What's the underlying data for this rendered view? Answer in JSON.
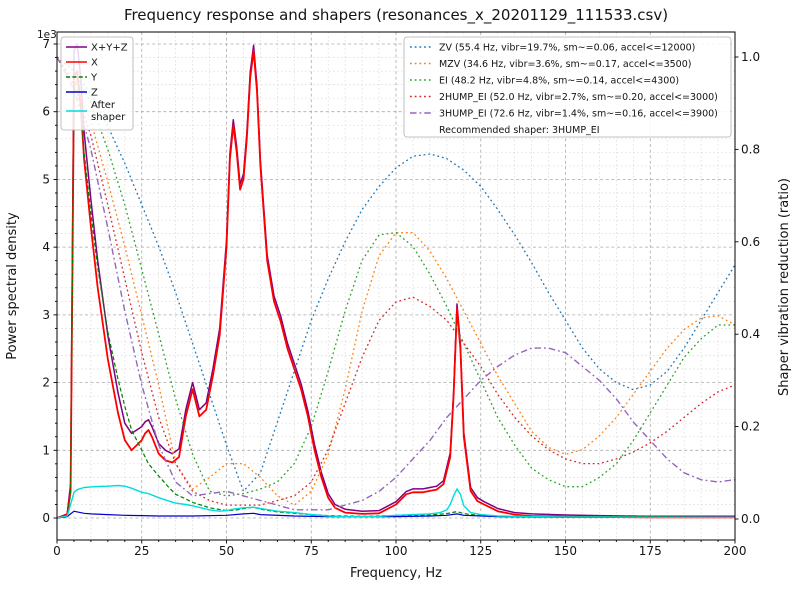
{
  "chart_data": {
    "type": "line",
    "title": "Frequency response and shapers (resonances_x_20201129_111533.csv)",
    "xlabel": "Frequency, Hz",
    "ylabel_left": "Power spectral density",
    "ylabel_right": "Shaper vibration reduction (ratio)",
    "y_left_multiplier": "1e3",
    "xlim": [
      0,
      200
    ],
    "ylim_left": [
      0,
      7000
    ],
    "ylim_right": [
      0,
      1.0
    ],
    "xticks": [
      0,
      25,
      50,
      75,
      100,
      125,
      150,
      175,
      200
    ],
    "yticks_left": [
      0,
      1,
      2,
      3,
      4,
      5,
      6,
      7
    ],
    "yticks_right": [
      "0.0",
      "0.2",
      "0.4",
      "0.6",
      "0.8",
      "1.0"
    ],
    "grid": true,
    "legend_position_psd": "upper left",
    "legend_position_shapers": "upper right",
    "recommended_label": "Recommended shaper: 3HUMP_EI",
    "colors": {
      "grid_major": "#aaaaaa",
      "grid_minor": "#d9d9d9",
      "spine": "#000000",
      "legend_border": "#b0b0b0"
    },
    "psd_series": [
      {
        "id": "sum",
        "name": "X+Y+Z",
        "color": "#800080",
        "style": "solid",
        "width": 1.5,
        "axis": "left",
        "x": [
          0,
          3,
          4,
          5,
          6,
          7,
          8,
          10,
          12,
          15,
          18,
          20,
          22,
          25,
          26,
          27,
          28,
          30,
          32,
          34,
          36,
          38,
          40,
          42,
          44,
          46,
          48,
          50,
          51,
          52,
          53,
          54,
          55,
          56,
          57,
          58,
          59,
          60,
          62,
          64,
          66,
          68,
          70,
          72,
          74,
          76,
          78,
          80,
          82,
          85,
          90,
          95,
          100,
          103,
          105,
          108,
          110,
          112,
          114,
          116,
          117,
          118,
          119,
          120,
          122,
          124,
          126,
          128,
          130,
          135,
          140,
          150,
          160,
          175,
          200
        ],
        "y": [
          0,
          60,
          500,
          6900,
          7000,
          6500,
          5700,
          4700,
          3800,
          2700,
          1850,
          1400,
          1250,
          1350,
          1420,
          1450,
          1350,
          1100,
          1000,
          950,
          1020,
          1600,
          2000,
          1600,
          1700,
          2200,
          2800,
          4100,
          5380,
          5880,
          5480,
          4930,
          5080,
          5680,
          6580,
          6980,
          6380,
          5280,
          3880,
          3280,
          2980,
          2580,
          2280,
          1980,
          1580,
          1080,
          670,
          360,
          200,
          130,
          100,
          110,
          240,
          390,
          430,
          430,
          450,
          470,
          550,
          960,
          1860,
          3160,
          2560,
          1260,
          450,
          300,
          240,
          190,
          140,
          80,
          60,
          45,
          35,
          25,
          25
        ]
      },
      {
        "id": "x",
        "name": "X",
        "color": "#ff0000",
        "style": "solid",
        "width": 1.8,
        "axis": "left",
        "x": [
          0,
          3,
          4,
          5,
          6,
          7,
          8,
          10,
          12,
          15,
          18,
          20,
          22,
          25,
          26,
          27,
          28,
          30,
          32,
          34,
          36,
          38,
          40,
          42,
          44,
          46,
          48,
          50,
          51,
          52,
          53,
          54,
          55,
          56,
          57,
          58,
          59,
          60,
          62,
          64,
          66,
          68,
          70,
          72,
          74,
          76,
          78,
          80,
          82,
          85,
          90,
          95,
          100,
          103,
          105,
          108,
          110,
          112,
          114,
          116,
          117,
          118,
          119,
          120,
          122,
          124,
          126,
          128,
          130,
          135,
          140,
          150,
          160,
          175,
          200
        ],
        "y": [
          0,
          50,
          400,
          6500,
          6600,
          6100,
          5300,
          4300,
          3400,
          2350,
          1550,
          1150,
          1000,
          1150,
          1250,
          1300,
          1200,
          950,
          850,
          820,
          900,
          1500,
          1900,
          1500,
          1600,
          2100,
          2700,
          4000,
          5300,
          5800,
          5400,
          4850,
          5000,
          5600,
          6500,
          6900,
          6300,
          5200,
          3800,
          3200,
          2900,
          2500,
          2200,
          1900,
          1500,
          1000,
          600,
          300,
          150,
          80,
          60,
          70,
          200,
          350,
          380,
          380,
          400,
          420,
          500,
          900,
          1800,
          3100,
          2500,
          1200,
          400,
          250,
          200,
          150,
          100,
          50,
          30,
          20,
          15,
          10,
          10
        ]
      },
      {
        "id": "y",
        "name": "Y",
        "color": "#008000",
        "style": "dashed",
        "width": 1.2,
        "axis": "left",
        "x": [
          0,
          3,
          4,
          5,
          6,
          7,
          8,
          10,
          12,
          15,
          18,
          20,
          22,
          25,
          27,
          30,
          33,
          35,
          38,
          40,
          45,
          50,
          53,
          55,
          58,
          60,
          65,
          70,
          75,
          80,
          90,
          100,
          110,
          115,
          118,
          120,
          125,
          130,
          140,
          150,
          160,
          170,
          180,
          200
        ],
        "y": [
          0,
          40,
          350,
          6300,
          6500,
          6000,
          5400,
          4500,
          3700,
          2750,
          2050,
          1650,
          1300,
          1000,
          800,
          620,
          450,
          350,
          280,
          230,
          150,
          110,
          120,
          140,
          160,
          130,
          90,
          70,
          50,
          35,
          25,
          35,
          45,
          65,
          95,
          65,
          35,
          25,
          15,
          15,
          25,
          30,
          20,
          10
        ]
      },
      {
        "id": "z",
        "name": "Z",
        "color": "#0000cc",
        "style": "solid",
        "width": 1.2,
        "axis": "left",
        "x": [
          0,
          3,
          4,
          5,
          6,
          8,
          10,
          15,
          20,
          25,
          30,
          40,
          50,
          55,
          58,
          60,
          70,
          80,
          100,
          110,
          115,
          118,
          120,
          130,
          150,
          200
        ],
        "y": [
          0,
          20,
          60,
          100,
          90,
          70,
          60,
          50,
          40,
          35,
          30,
          30,
          40,
          60,
          70,
          50,
          30,
          20,
          20,
          30,
          40,
          60,
          40,
          20,
          10,
          10
        ]
      },
      {
        "id": "after",
        "name": "After shaper",
        "legend_lines": [
          "After",
          "shaper"
        ],
        "color": "#00dddd",
        "style": "solid",
        "width": 1.4,
        "axis": "left",
        "x": [
          0,
          3,
          4,
          5,
          6,
          8,
          10,
          12,
          15,
          18,
          20,
          22,
          25,
          27,
          30,
          33,
          35,
          38,
          40,
          45,
          48,
          50,
          52,
          55,
          58,
          60,
          65,
          70,
          75,
          80,
          85,
          90,
          95,
          100,
          105,
          110,
          113,
          115,
          116,
          117,
          118,
          119,
          120,
          122,
          125,
          130,
          140,
          150,
          160,
          180,
          200
        ],
        "y": [
          0,
          30,
          200,
          380,
          420,
          450,
          460,
          465,
          470,
          480,
          470,
          440,
          380,
          360,
          300,
          250,
          220,
          200,
          180,
          120,
          100,
          110,
          130,
          150,
          160,
          140,
          100,
          80,
          50,
          30,
          20,
          20,
          25,
          40,
          50,
          60,
          80,
          120,
          200,
          330,
          430,
          350,
          180,
          80,
          50,
          30,
          20,
          15,
          15,
          10,
          10
        ]
      }
    ],
    "shaper_x": [
      0,
      5,
      10,
      15,
      20,
      25,
      30,
      35,
      40,
      45,
      50,
      55,
      60,
      65,
      70,
      75,
      80,
      85,
      90,
      95,
      100,
      105,
      110,
      115,
      120,
      125,
      130,
      135,
      140,
      145,
      150,
      155,
      160,
      165,
      170,
      175,
      180,
      185,
      190,
      195,
      200
    ],
    "shaper_series": [
      {
        "id": "zv",
        "name": "ZV",
        "label": "ZV (55.4 Hz, vibr=19.7%, sm~=0.06, accel<=12000)",
        "color": "#1f77b4",
        "style": "dotted",
        "width": 1.3,
        "axis": "right",
        "y": [
          1.0,
          0.97,
          0.92,
          0.85,
          0.77,
          0.68,
          0.59,
          0.49,
          0.38,
          0.27,
          0.16,
          0.06,
          0.1,
          0.21,
          0.32,
          0.43,
          0.52,
          0.6,
          0.67,
          0.72,
          0.76,
          0.785,
          0.79,
          0.78,
          0.755,
          0.72,
          0.67,
          0.615,
          0.555,
          0.49,
          0.43,
          0.37,
          0.325,
          0.295,
          0.28,
          0.29,
          0.32,
          0.37,
          0.43,
          0.49,
          0.55
        ]
      },
      {
        "id": "mzv",
        "name": "MZV",
        "label": "MZV (34.6 Hz, vibr=3.6%, sm~=0.17, accel<=3500)",
        "color": "#ff7f0e",
        "style": "dotted",
        "width": 1.3,
        "axis": "right",
        "y": [
          1.0,
          0.95,
          0.86,
          0.73,
          0.59,
          0.44,
          0.29,
          0.12,
          0.065,
          0.09,
          0.12,
          0.12,
          0.09,
          0.05,
          0.03,
          0.06,
          0.14,
          0.28,
          0.45,
          0.57,
          0.62,
          0.62,
          0.58,
          0.52,
          0.45,
          0.38,
          0.31,
          0.25,
          0.19,
          0.155,
          0.14,
          0.15,
          0.18,
          0.22,
          0.27,
          0.32,
          0.37,
          0.41,
          0.435,
          0.44,
          0.42
        ]
      },
      {
        "id": "ei",
        "name": "EI",
        "label": "EI (48.2 Hz, vibr=4.8%, sm~=0.14, accel<=4300)",
        "color": "#2ca02c",
        "style": "dotted",
        "width": 1.3,
        "axis": "right",
        "y": [
          1.0,
          0.97,
          0.9,
          0.8,
          0.68,
          0.54,
          0.4,
          0.26,
          0.14,
          0.06,
          0.05,
          0.055,
          0.065,
          0.08,
          0.12,
          0.2,
          0.32,
          0.45,
          0.56,
          0.615,
          0.62,
          0.59,
          0.53,
          0.46,
          0.38,
          0.3,
          0.22,
          0.16,
          0.11,
          0.085,
          0.07,
          0.07,
          0.09,
          0.12,
          0.17,
          0.23,
          0.29,
          0.35,
          0.39,
          0.42,
          0.42
        ]
      },
      {
        "id": "hump2",
        "name": "2HUMP_EI",
        "label": "2HUMP_EI (52.0 Hz, vibr=2.7%, sm~=0.20, accel<=3000)",
        "color": "#d62728",
        "style": "dotted",
        "width": 1.3,
        "axis": "right",
        "y": [
          1.0,
          0.94,
          0.83,
          0.68,
          0.52,
          0.36,
          0.22,
          0.12,
          0.06,
          0.04,
          0.03,
          0.03,
          0.03,
          0.04,
          0.05,
          0.08,
          0.15,
          0.25,
          0.35,
          0.43,
          0.47,
          0.48,
          0.46,
          0.43,
          0.38,
          0.33,
          0.27,
          0.22,
          0.18,
          0.15,
          0.13,
          0.12,
          0.12,
          0.13,
          0.145,
          0.165,
          0.19,
          0.22,
          0.25,
          0.275,
          0.29
        ]
      },
      {
        "id": "hump3",
        "name": "3HUMP_EI",
        "label": "3HUMP_EI (72.6 Hz, vibr=1.4%, sm~=0.16, accel<=3900)",
        "color": "#9467bd",
        "style": "dashdot",
        "width": 1.4,
        "axis": "right",
        "y": [
          1.0,
          0.93,
          0.8,
          0.63,
          0.45,
          0.29,
          0.16,
          0.08,
          0.05,
          0.055,
          0.06,
          0.05,
          0.04,
          0.03,
          0.02,
          0.02,
          0.02,
          0.03,
          0.04,
          0.06,
          0.09,
          0.13,
          0.17,
          0.22,
          0.26,
          0.3,
          0.33,
          0.355,
          0.37,
          0.37,
          0.36,
          0.33,
          0.3,
          0.26,
          0.21,
          0.17,
          0.13,
          0.1,
          0.085,
          0.08,
          0.085
        ]
      }
    ]
  }
}
